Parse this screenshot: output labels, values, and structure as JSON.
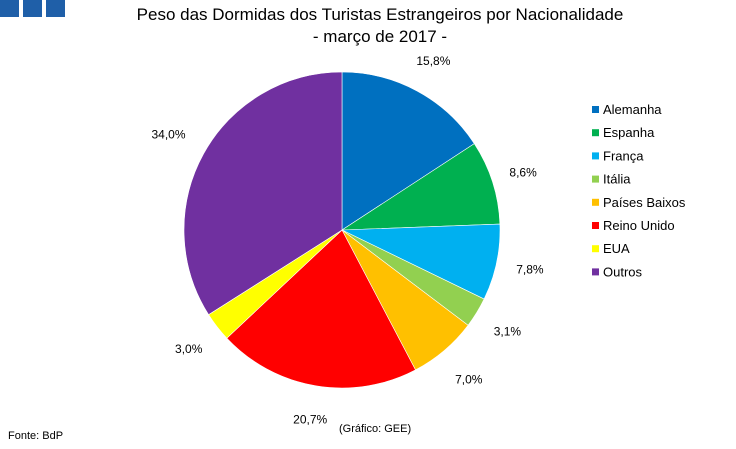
{
  "chart_data": {
    "type": "pie",
    "title_line1": "Peso das Dormidas dos Turistas Estrangeiros por Nacionalidade",
    "title_line2": "- março de 2017 -",
    "categories": [
      "Alemanha",
      "Espanha",
      "França",
      "Itália",
      "Países Baixos",
      "Reino Unido",
      "EUA",
      "Outros"
    ],
    "values": [
      15.8,
      8.6,
      7.8,
      3.1,
      7.0,
      20.7,
      3.0,
      34.0
    ],
    "value_labels": [
      "15,8%",
      "8,6%",
      "7,8%",
      "3,1%",
      "7,0%",
      "20,7%",
      "3,0%",
      "34,0%"
    ],
    "colors": [
      "#0070C0",
      "#00B050",
      "#00B0F0",
      "#92D050",
      "#FFC000",
      "#FF0000",
      "#FFFF00",
      "#7030A0"
    ],
    "legend_position": "right",
    "start_angle": "12 o'clock, clockwise"
  },
  "footer": {
    "source": "Fonte: BdP",
    "credit": "(Gráfico: GEE)"
  },
  "logo_color": "#1F5FA8"
}
